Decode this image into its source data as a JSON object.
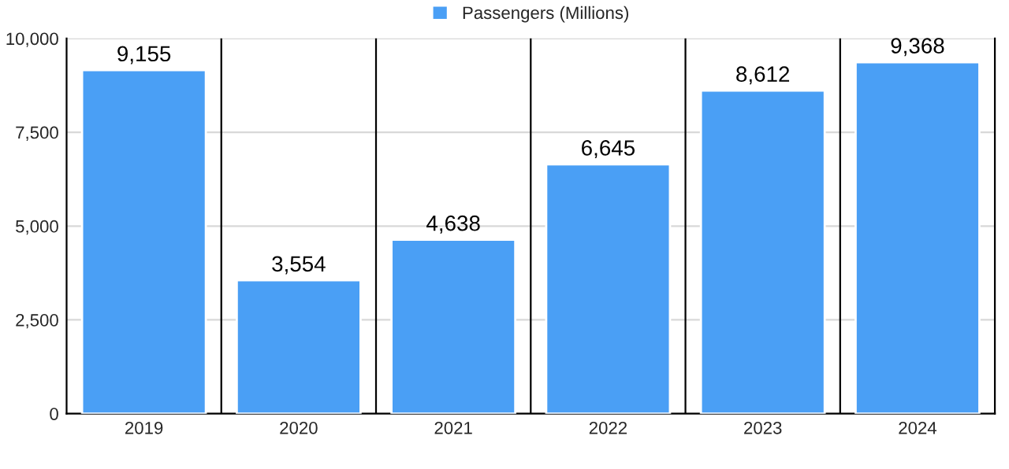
{
  "chart_data": {
    "type": "bar",
    "categories": [
      "2019",
      "2020",
      "2021",
      "2022",
      "2023",
      "2024"
    ],
    "series": [
      {
        "name": "Passengers (Millions)",
        "color": "#4a9ff5",
        "values": [
          9155,
          3554,
          4638,
          6645,
          8612,
          9368
        ]
      }
    ],
    "ylim": [
      0,
      10000
    ],
    "yticks": [
      {
        "value": 0,
        "label": "0"
      },
      {
        "value": 2500,
        "label": "2,500"
      },
      {
        "value": 5000,
        "label": "5,000"
      },
      {
        "value": 7500,
        "label": "7,500"
      },
      {
        "value": 10000,
        "label": "10,000"
      }
    ],
    "value_labels": [
      "9,155",
      "3,554",
      "4,638",
      "6,645",
      "8,612",
      "9,368"
    ],
    "grid": true,
    "legend": "top"
  }
}
